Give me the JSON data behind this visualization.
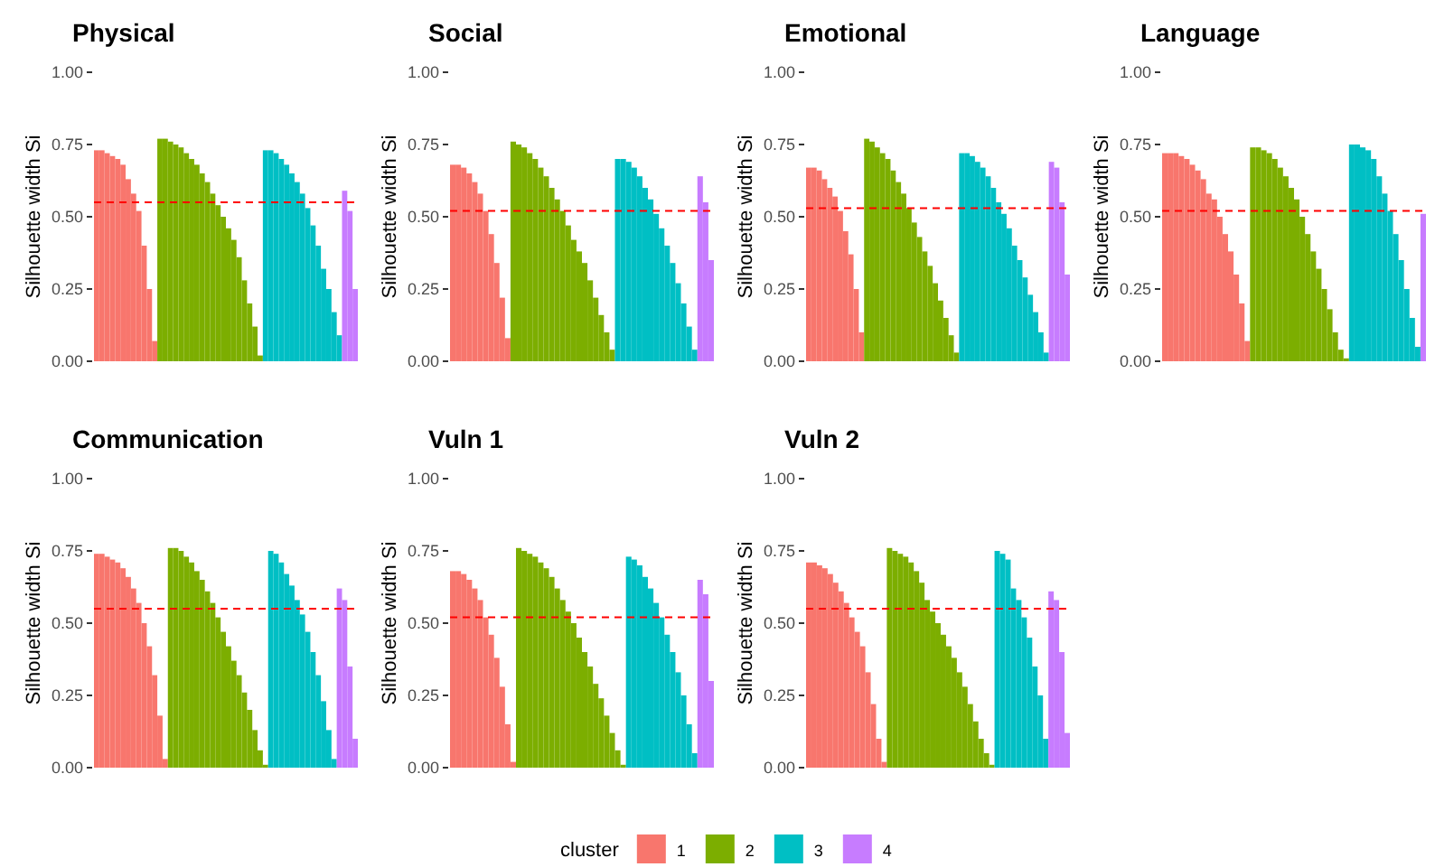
{
  "chart_data": [
    {
      "type": "bar",
      "title": "Physical",
      "ylabel": "Silhouette width Si",
      "categories": [
        null,
        null,
        null,
        null,
        null,
        null,
        null,
        null,
        null,
        null,
        null,
        null,
        null,
        null,
        null,
        null,
        null,
        null,
        null,
        null,
        null,
        null,
        null,
        null,
        null,
        null,
        null,
        null,
        null,
        null,
        null,
        null,
        null,
        null,
        null,
        null,
        null,
        null,
        null,
        null,
        null,
        null,
        null,
        null,
        null,
        null,
        null,
        null,
        null,
        null
      ],
      "ylim": [
        0,
        1
      ],
      "yticks": [
        {
          "value": 0,
          "label": "0.00"
        },
        {
          "value": 0.25,
          "label": "0.25"
        },
        {
          "value": 0.5,
          "label": "0.50"
        },
        {
          "value": 0.75,
          "label": "0.75"
        },
        {
          "value": 1,
          "label": "1.00"
        }
      ],
      "tick_labels": "y",
      "ref_lines": [
        {
          "axis": "y",
          "value": 0.55,
          "color": "#ff0000",
          "line_style": "dashed"
        }
      ],
      "series": [
        {
          "color": "#f8766d",
          "values": [
            0.73,
            0.73,
            0.72,
            0.71,
            0.7,
            0.68,
            0.63,
            0.58,
            0.52,
            0.4,
            0.25,
            0.07,
            null,
            null,
            null,
            null,
            null,
            null,
            null,
            null,
            null,
            null,
            null,
            null,
            null,
            null,
            null,
            null,
            null,
            null,
            null,
            null,
            null,
            null,
            null,
            null,
            null,
            null,
            null,
            null,
            null,
            null,
            null,
            null,
            null,
            null,
            null,
            null,
            null,
            null
          ]
        },
        {
          "color": "#7cae00",
          "values": [
            null,
            null,
            null,
            null,
            null,
            null,
            null,
            null,
            null,
            null,
            null,
            null,
            0.77,
            0.77,
            0.76,
            0.75,
            0.74,
            0.72,
            0.7,
            0.68,
            0.65,
            0.62,
            0.58,
            0.54,
            0.5,
            0.46,
            0.42,
            0.36,
            0.28,
            0.2,
            0.12,
            0.02,
            null,
            null,
            null,
            null,
            null,
            null,
            null,
            null,
            null,
            null,
            null,
            null,
            null,
            null,
            null,
            null,
            null,
            null
          ]
        },
        {
          "color": "#00bfc4",
          "values": [
            null,
            null,
            null,
            null,
            null,
            null,
            null,
            null,
            null,
            null,
            null,
            null,
            null,
            null,
            null,
            null,
            null,
            null,
            null,
            null,
            null,
            null,
            null,
            null,
            null,
            null,
            null,
            null,
            null,
            null,
            null,
            null,
            0.73,
            0.73,
            0.72,
            0.7,
            0.68,
            0.65,
            0.62,
            0.58,
            0.53,
            0.47,
            0.4,
            0.32,
            0.25,
            0.17,
            0.09,
            null,
            null,
            null
          ]
        },
        {
          "color": "#c77cff",
          "values": [
            null,
            null,
            null,
            null,
            null,
            null,
            null,
            null,
            null,
            null,
            null,
            null,
            null,
            null,
            null,
            null,
            null,
            null,
            null,
            null,
            null,
            null,
            null,
            null,
            null,
            null,
            null,
            null,
            null,
            null,
            null,
            null,
            null,
            null,
            null,
            null,
            null,
            null,
            null,
            null,
            null,
            null,
            null,
            null,
            null,
            null,
            null,
            0.59,
            0.52,
            0.25
          ]
        }
      ]
    },
    {
      "type": "bar",
      "title": "Social",
      "ylabel": "Silhouette width Si",
      "categories": [
        null,
        null,
        null,
        null,
        null,
        null,
        null,
        null,
        null,
        null,
        null,
        null,
        null,
        null,
        null,
        null,
        null,
        null,
        null,
        null,
        null,
        null,
        null,
        null,
        null,
        null,
        null,
        null,
        null,
        null,
        null,
        null,
        null,
        null,
        null,
        null,
        null,
        null,
        null,
        null,
        null,
        null,
        null,
        null,
        null,
        null,
        null,
        null
      ],
      "ylim": [
        0,
        1
      ],
      "yticks": [
        {
          "value": 0,
          "label": "0.00"
        },
        {
          "value": 0.25,
          "label": "0.25"
        },
        {
          "value": 0.5,
          "label": "0.50"
        },
        {
          "value": 0.75,
          "label": "0.75"
        },
        {
          "value": 1,
          "label": "1.00"
        }
      ],
      "tick_labels": "y",
      "ref_lines": [
        {
          "axis": "y",
          "value": 0.52,
          "color": "#ff0000",
          "line_style": "dashed"
        }
      ],
      "series": [
        {
          "color": "#f8766d",
          "values": [
            0.68,
            0.68,
            0.67,
            0.65,
            0.62,
            0.58,
            0.52,
            0.44,
            0.34,
            0.22,
            0.08,
            null,
            null,
            null,
            null,
            null,
            null,
            null,
            null,
            null,
            null,
            null,
            null,
            null,
            null,
            null,
            null,
            null,
            null,
            null,
            null,
            null,
            null,
            null,
            null,
            null,
            null,
            null,
            null,
            null,
            null,
            null,
            null,
            null,
            null,
            null,
            null,
            null
          ]
        },
        {
          "color": "#7cae00",
          "values": [
            null,
            null,
            null,
            null,
            null,
            null,
            null,
            null,
            null,
            null,
            null,
            0.76,
            0.75,
            0.74,
            0.72,
            0.7,
            0.67,
            0.64,
            0.6,
            0.56,
            0.52,
            0.47,
            0.42,
            0.38,
            0.34,
            0.28,
            0.22,
            0.16,
            0.1,
            0.04,
            null,
            null,
            null,
            null,
            null,
            null,
            null,
            null,
            null,
            null,
            null,
            null,
            null,
            null,
            null,
            null,
            null,
            null
          ]
        },
        {
          "color": "#00bfc4",
          "values": [
            null,
            null,
            null,
            null,
            null,
            null,
            null,
            null,
            null,
            null,
            null,
            null,
            null,
            null,
            null,
            null,
            null,
            null,
            null,
            null,
            null,
            null,
            null,
            null,
            null,
            null,
            null,
            null,
            null,
            null,
            0.7,
            0.7,
            0.69,
            0.67,
            0.64,
            0.6,
            0.56,
            0.51,
            0.46,
            0.4,
            0.34,
            0.27,
            0.2,
            0.12,
            0.04,
            null,
            null,
            null
          ]
        },
        {
          "color": "#c77cff",
          "values": [
            null,
            null,
            null,
            null,
            null,
            null,
            null,
            null,
            null,
            null,
            null,
            null,
            null,
            null,
            null,
            null,
            null,
            null,
            null,
            null,
            null,
            null,
            null,
            null,
            null,
            null,
            null,
            null,
            null,
            null,
            null,
            null,
            null,
            null,
            null,
            null,
            null,
            null,
            null,
            null,
            null,
            null,
            null,
            null,
            null,
            0.64,
            0.55,
            0.35
          ]
        }
      ]
    },
    {
      "type": "bar",
      "title": "Emotional",
      "ylabel": "Silhouette width Si",
      "categories": [
        null,
        null,
        null,
        null,
        null,
        null,
        null,
        null,
        null,
        null,
        null,
        null,
        null,
        null,
        null,
        null,
        null,
        null,
        null,
        null,
        null,
        null,
        null,
        null,
        null,
        null,
        null,
        null,
        null,
        null,
        null,
        null,
        null,
        null,
        null,
        null,
        null,
        null,
        null,
        null,
        null,
        null,
        null,
        null,
        null,
        null,
        null,
        null,
        null,
        null
      ],
      "ylim": [
        0,
        1
      ],
      "yticks": [
        {
          "value": 0,
          "label": "0.00"
        },
        {
          "value": 0.25,
          "label": "0.25"
        },
        {
          "value": 0.5,
          "label": "0.50"
        },
        {
          "value": 0.75,
          "label": "0.75"
        },
        {
          "value": 1,
          "label": "1.00"
        }
      ],
      "tick_labels": "y",
      "ref_lines": [
        {
          "axis": "y",
          "value": 0.53,
          "color": "#ff0000",
          "line_style": "dashed"
        }
      ],
      "series": [
        {
          "color": "#f8766d",
          "values": [
            0.67,
            0.67,
            0.66,
            0.63,
            0.6,
            0.57,
            0.52,
            0.45,
            0.37,
            0.25,
            0.1,
            null,
            null,
            null,
            null,
            null,
            null,
            null,
            null,
            null,
            null,
            null,
            null,
            null,
            null,
            null,
            null,
            null,
            null,
            null,
            null,
            null,
            null,
            null,
            null,
            null,
            null,
            null,
            null,
            null,
            null,
            null,
            null,
            null,
            null,
            null,
            null,
            null,
            null,
            null
          ]
        },
        {
          "color": "#7cae00",
          "values": [
            null,
            null,
            null,
            null,
            null,
            null,
            null,
            null,
            null,
            null,
            null,
            0.77,
            0.76,
            0.74,
            0.72,
            0.7,
            0.66,
            0.62,
            0.58,
            0.53,
            0.48,
            0.43,
            0.38,
            0.33,
            0.27,
            0.21,
            0.15,
            0.09,
            0.03,
            null,
            null,
            null,
            null,
            null,
            null,
            null,
            null,
            null,
            null,
            null,
            null,
            null,
            null,
            null,
            null,
            null,
            null,
            null,
            null,
            null
          ]
        },
        {
          "color": "#00bfc4",
          "values": [
            null,
            null,
            null,
            null,
            null,
            null,
            null,
            null,
            null,
            null,
            null,
            null,
            null,
            null,
            null,
            null,
            null,
            null,
            null,
            null,
            null,
            null,
            null,
            null,
            null,
            null,
            null,
            null,
            null,
            0.72,
            0.72,
            0.71,
            0.69,
            0.67,
            0.64,
            0.6,
            0.55,
            0.51,
            0.46,
            0.4,
            0.35,
            0.29,
            0.23,
            0.17,
            0.1,
            0.03,
            null,
            null,
            null,
            null
          ]
        },
        {
          "color": "#c77cff",
          "values": [
            null,
            null,
            null,
            null,
            null,
            null,
            null,
            null,
            null,
            null,
            null,
            null,
            null,
            null,
            null,
            null,
            null,
            null,
            null,
            null,
            null,
            null,
            null,
            null,
            null,
            null,
            null,
            null,
            null,
            null,
            null,
            null,
            null,
            null,
            null,
            null,
            null,
            null,
            null,
            null,
            null,
            null,
            null,
            null,
            null,
            null,
            0.69,
            0.67,
            0.55,
            0.3
          ]
        }
      ]
    },
    {
      "type": "bar",
      "title": "Language",
      "ylabel": "Silhouette width Si",
      "categories": [
        null,
        null,
        null,
        null,
        null,
        null,
        null,
        null,
        null,
        null,
        null,
        null,
        null,
        null,
        null,
        null,
        null,
        null,
        null,
        null,
        null,
        null,
        null,
        null,
        null,
        null,
        null,
        null,
        null,
        null,
        null,
        null,
        null,
        null,
        null,
        null,
        null,
        null,
        null,
        null,
        null,
        null,
        null,
        null,
        null,
        null,
        null,
        null
      ],
      "ylim": [
        0,
        1
      ],
      "yticks": [
        {
          "value": 0,
          "label": "0.00"
        },
        {
          "value": 0.25,
          "label": "0.25"
        },
        {
          "value": 0.5,
          "label": "0.50"
        },
        {
          "value": 0.75,
          "label": "0.75"
        },
        {
          "value": 1,
          "label": "1.00"
        }
      ],
      "tick_labels": "y",
      "ref_lines": [
        {
          "axis": "y",
          "value": 0.52,
          "color": "#ff0000",
          "line_style": "dashed"
        }
      ],
      "series": [
        {
          "color": "#f8766d",
          "values": [
            0.72,
            0.72,
            0.72,
            0.71,
            0.7,
            0.68,
            0.66,
            0.63,
            0.58,
            0.56,
            0.5,
            0.44,
            0.38,
            0.3,
            0.2,
            0.07,
            null,
            null,
            null,
            null,
            null,
            null,
            null,
            null,
            null,
            null,
            null,
            null,
            null,
            null,
            null,
            null,
            null,
            null,
            null,
            null,
            null,
            null,
            null,
            null,
            null,
            null,
            null,
            null,
            null,
            null,
            null,
            null
          ]
        },
        {
          "color": "#7cae00",
          "values": [
            null,
            null,
            null,
            null,
            null,
            null,
            null,
            null,
            null,
            null,
            null,
            null,
            null,
            null,
            null,
            null,
            0.74,
            0.74,
            0.73,
            0.72,
            0.7,
            0.67,
            0.64,
            0.6,
            0.56,
            0.5,
            0.44,
            0.38,
            0.32,
            0.25,
            0.18,
            0.1,
            0.04,
            0.01,
            null,
            null,
            null,
            null,
            null,
            null,
            null,
            null,
            null,
            null,
            null,
            null,
            null,
            null
          ]
        },
        {
          "color": "#00bfc4",
          "values": [
            null,
            null,
            null,
            null,
            null,
            null,
            null,
            null,
            null,
            null,
            null,
            null,
            null,
            null,
            null,
            null,
            null,
            null,
            null,
            null,
            null,
            null,
            null,
            null,
            null,
            null,
            null,
            null,
            null,
            null,
            null,
            null,
            null,
            null,
            0.75,
            0.75,
            0.74,
            0.73,
            0.7,
            0.64,
            0.58,
            0.52,
            0.44,
            0.35,
            0.25,
            0.15,
            0.05,
            null
          ]
        },
        {
          "color": "#c77cff",
          "values": [
            null,
            null,
            null,
            null,
            null,
            null,
            null,
            null,
            null,
            null,
            null,
            null,
            null,
            null,
            null,
            null,
            null,
            null,
            null,
            null,
            null,
            null,
            null,
            null,
            null,
            null,
            null,
            null,
            null,
            null,
            null,
            null,
            null,
            null,
            null,
            null,
            null,
            null,
            null,
            null,
            null,
            null,
            null,
            null,
            null,
            null,
            null,
            0.51
          ]
        }
      ]
    },
    {
      "type": "bar",
      "title": "Communication",
      "ylabel": "Silhouette width Si",
      "categories": [
        null,
        null,
        null,
        null,
        null,
        null,
        null,
        null,
        null,
        null,
        null,
        null,
        null,
        null,
        null,
        null,
        null,
        null,
        null,
        null,
        null,
        null,
        null,
        null,
        null,
        null,
        null,
        null,
        null,
        null,
        null,
        null,
        null,
        null,
        null,
        null,
        null,
        null,
        null,
        null,
        null,
        null,
        null,
        null,
        null,
        null,
        null,
        null,
        null,
        null
      ],
      "ylim": [
        0,
        1
      ],
      "yticks": [
        {
          "value": 0,
          "label": "0.00"
        },
        {
          "value": 0.25,
          "label": "0.25"
        },
        {
          "value": 0.5,
          "label": "0.50"
        },
        {
          "value": 0.75,
          "label": "0.75"
        },
        {
          "value": 1,
          "label": "1.00"
        }
      ],
      "tick_labels": "y",
      "ref_lines": [
        {
          "axis": "y",
          "value": 0.55,
          "color": "#ff0000",
          "line_style": "dashed"
        }
      ],
      "series": [
        {
          "color": "#f8766d",
          "values": [
            0.74,
            0.74,
            0.73,
            0.72,
            0.71,
            0.69,
            0.66,
            0.62,
            0.57,
            0.5,
            0.42,
            0.32,
            0.18,
            0.03,
            null,
            null,
            null,
            null,
            null,
            null,
            null,
            null,
            null,
            null,
            null,
            null,
            null,
            null,
            null,
            null,
            null,
            null,
            null,
            null,
            null,
            null,
            null,
            null,
            null,
            null,
            null,
            null,
            null,
            null,
            null,
            null,
            null,
            null,
            null,
            null
          ]
        },
        {
          "color": "#7cae00",
          "values": [
            null,
            null,
            null,
            null,
            null,
            null,
            null,
            null,
            null,
            null,
            null,
            null,
            null,
            null,
            0.76,
            0.76,
            0.75,
            0.73,
            0.71,
            0.68,
            0.65,
            0.61,
            0.57,
            0.52,
            0.47,
            0.42,
            0.37,
            0.32,
            0.26,
            0.2,
            0.13,
            0.06,
            0.01,
            null,
            null,
            null,
            null,
            null,
            null,
            null,
            null,
            null,
            null,
            null,
            null,
            null,
            null,
            null,
            null,
            null
          ]
        },
        {
          "color": "#00bfc4",
          "values": [
            null,
            null,
            null,
            null,
            null,
            null,
            null,
            null,
            null,
            null,
            null,
            null,
            null,
            null,
            null,
            null,
            null,
            null,
            null,
            null,
            null,
            null,
            null,
            null,
            null,
            null,
            null,
            null,
            null,
            null,
            null,
            null,
            null,
            0.75,
            0.74,
            0.71,
            0.67,
            0.63,
            0.58,
            0.53,
            0.47,
            0.4,
            0.32,
            0.23,
            0.13,
            0.03,
            null,
            null,
            null,
            null
          ]
        },
        {
          "color": "#c77cff",
          "values": [
            null,
            null,
            null,
            null,
            null,
            null,
            null,
            null,
            null,
            null,
            null,
            null,
            null,
            null,
            null,
            null,
            null,
            null,
            null,
            null,
            null,
            null,
            null,
            null,
            null,
            null,
            null,
            null,
            null,
            null,
            null,
            null,
            null,
            null,
            null,
            null,
            null,
            null,
            null,
            null,
            null,
            null,
            null,
            null,
            null,
            null,
            0.62,
            0.58,
            0.35,
            0.1
          ]
        }
      ]
    },
    {
      "type": "bar",
      "title": "Vuln 1",
      "ylabel": "Silhouette width Si",
      "categories": [
        null,
        null,
        null,
        null,
        null,
        null,
        null,
        null,
        null,
        null,
        null,
        null,
        null,
        null,
        null,
        null,
        null,
        null,
        null,
        null,
        null,
        null,
        null,
        null,
        null,
        null,
        null,
        null,
        null,
        null,
        null,
        null,
        null,
        null,
        null,
        null,
        null,
        null,
        null,
        null,
        null,
        null,
        null,
        null,
        null,
        null,
        null,
        null
      ],
      "ylim": [
        0,
        1
      ],
      "yticks": [
        {
          "value": 0,
          "label": "0.00"
        },
        {
          "value": 0.25,
          "label": "0.25"
        },
        {
          "value": 0.5,
          "label": "0.50"
        },
        {
          "value": 0.75,
          "label": "0.75"
        },
        {
          "value": 1,
          "label": "1.00"
        }
      ],
      "tick_labels": "y",
      "legend": "bottom",
      "legend_title": "cluster",
      "ref_lines": [
        {
          "axis": "y",
          "value": 0.52,
          "color": "#ff0000",
          "line_style": "dashed"
        }
      ],
      "series": [
        {
          "name": "1",
          "color": "#f8766d",
          "values": [
            0.68,
            0.68,
            0.67,
            0.65,
            0.62,
            0.58,
            0.52,
            0.46,
            0.38,
            0.28,
            0.15,
            0.02,
            null,
            null,
            null,
            null,
            null,
            null,
            null,
            null,
            null,
            null,
            null,
            null,
            null,
            null,
            null,
            null,
            null,
            null,
            null,
            null,
            null,
            null,
            null,
            null,
            null,
            null,
            null,
            null,
            null,
            null,
            null,
            null,
            null,
            null,
            null,
            null
          ]
        },
        {
          "name": "2",
          "color": "#7cae00",
          "values": [
            null,
            null,
            null,
            null,
            null,
            null,
            null,
            null,
            null,
            null,
            null,
            null,
            0.76,
            0.75,
            0.74,
            0.73,
            0.71,
            0.69,
            0.66,
            0.62,
            0.58,
            0.54,
            0.5,
            0.45,
            0.4,
            0.35,
            0.29,
            0.24,
            0.18,
            0.12,
            0.06,
            0.01,
            null,
            null,
            null,
            null,
            null,
            null,
            null,
            null,
            null,
            null,
            null,
            null,
            null,
            null,
            null,
            null
          ]
        },
        {
          "name": "3",
          "color": "#00bfc4",
          "values": [
            null,
            null,
            null,
            null,
            null,
            null,
            null,
            null,
            null,
            null,
            null,
            null,
            null,
            null,
            null,
            null,
            null,
            null,
            null,
            null,
            null,
            null,
            null,
            null,
            null,
            null,
            null,
            null,
            null,
            null,
            null,
            null,
            0.73,
            0.72,
            0.7,
            0.66,
            0.62,
            0.57,
            0.52,
            0.46,
            0.4,
            0.33,
            0.25,
            0.15,
            0.05,
            null,
            null,
            null
          ]
        },
        {
          "name": "4",
          "color": "#c77cff",
          "values": [
            null,
            null,
            null,
            null,
            null,
            null,
            null,
            null,
            null,
            null,
            null,
            null,
            null,
            null,
            null,
            null,
            null,
            null,
            null,
            null,
            null,
            null,
            null,
            null,
            null,
            null,
            null,
            null,
            null,
            null,
            null,
            null,
            null,
            null,
            null,
            null,
            null,
            null,
            null,
            null,
            null,
            null,
            null,
            null,
            null,
            0.65,
            0.6,
            0.3
          ]
        }
      ]
    },
    {
      "type": "bar",
      "title": "Vuln 2",
      "ylabel": "Silhouette width Si",
      "categories": [
        null,
        null,
        null,
        null,
        null,
        null,
        null,
        null,
        null,
        null,
        null,
        null,
        null,
        null,
        null,
        null,
        null,
        null,
        null,
        null,
        null,
        null,
        null,
        null,
        null,
        null,
        null,
        null,
        null,
        null,
        null,
        null,
        null,
        null,
        null,
        null,
        null,
        null,
        null,
        null,
        null,
        null,
        null,
        null,
        null,
        null,
        null,
        null,
        null
      ],
      "ylim": [
        0,
        1
      ],
      "yticks": [
        {
          "value": 0,
          "label": "0.00"
        },
        {
          "value": 0.25,
          "label": "0.25"
        },
        {
          "value": 0.5,
          "label": "0.50"
        },
        {
          "value": 0.75,
          "label": "0.75"
        },
        {
          "value": 1,
          "label": "1.00"
        }
      ],
      "tick_labels": "y",
      "ref_lines": [
        {
          "axis": "y",
          "value": 0.55,
          "color": "#ff0000",
          "line_style": "dashed"
        }
      ],
      "series": [
        {
          "color": "#f8766d",
          "values": [
            0.71,
            0.71,
            0.7,
            0.69,
            0.67,
            0.64,
            0.61,
            0.57,
            0.52,
            0.47,
            0.42,
            0.33,
            0.22,
            0.1,
            0.02,
            null,
            null,
            null,
            null,
            null,
            null,
            null,
            null,
            null,
            null,
            null,
            null,
            null,
            null,
            null,
            null,
            null,
            null,
            null,
            null,
            null,
            null,
            null,
            null,
            null,
            null,
            null,
            null,
            null,
            null,
            null,
            null,
            null,
            null
          ]
        },
        {
          "color": "#7cae00",
          "values": [
            null,
            null,
            null,
            null,
            null,
            null,
            null,
            null,
            null,
            null,
            null,
            null,
            null,
            null,
            null,
            0.76,
            0.75,
            0.74,
            0.73,
            0.71,
            0.68,
            0.64,
            0.58,
            0.54,
            0.5,
            0.46,
            0.42,
            0.38,
            0.33,
            0.28,
            0.22,
            0.16,
            0.1,
            0.05,
            0.01,
            null,
            null,
            null,
            null,
            null,
            null,
            null,
            null,
            null,
            null,
            null,
            null,
            null,
            null
          ]
        },
        {
          "color": "#00bfc4",
          "values": [
            null,
            null,
            null,
            null,
            null,
            null,
            null,
            null,
            null,
            null,
            null,
            null,
            null,
            null,
            null,
            null,
            null,
            null,
            null,
            null,
            null,
            null,
            null,
            null,
            null,
            null,
            null,
            null,
            null,
            null,
            null,
            null,
            null,
            null,
            null,
            0.75,
            0.74,
            0.72,
            0.62,
            0.58,
            0.52,
            0.45,
            0.35,
            0.25,
            0.1,
            null,
            null,
            null,
            null
          ]
        },
        {
          "color": "#c77cff",
          "values": [
            null,
            null,
            null,
            null,
            null,
            null,
            null,
            null,
            null,
            null,
            null,
            null,
            null,
            null,
            null,
            null,
            null,
            null,
            null,
            null,
            null,
            null,
            null,
            null,
            null,
            null,
            null,
            null,
            null,
            null,
            null,
            null,
            null,
            null,
            null,
            null,
            null,
            null,
            null,
            null,
            null,
            null,
            null,
            null,
            null,
            0.61,
            0.58,
            0.4,
            0.12
          ]
        }
      ]
    }
  ]
}
